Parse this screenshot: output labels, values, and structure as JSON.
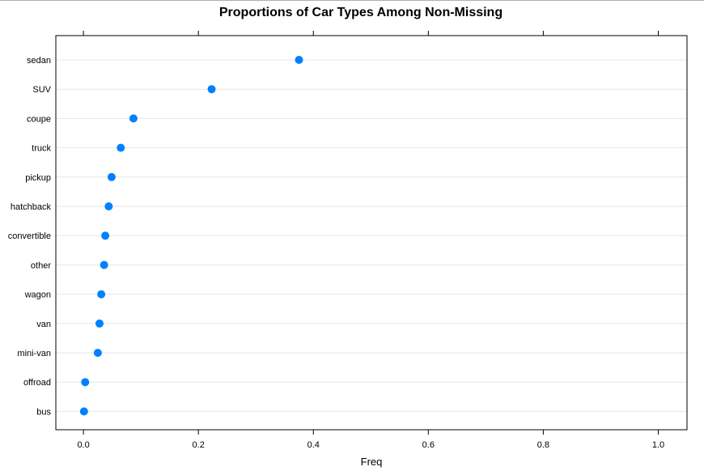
{
  "chart_data": {
    "type": "scatter",
    "title": "Proportions of Car Types Among Non-Missing",
    "xlabel": "Freq",
    "ylabel": "",
    "xlim": [
      -0.048,
      1.05
    ],
    "x_ticks": [
      0.0,
      0.2,
      0.4,
      0.6,
      0.8,
      1.0
    ],
    "x_tick_labels": [
      "0.0",
      "0.2",
      "0.4",
      "0.6",
      "0.8",
      "1.0"
    ],
    "grid": "horizontal",
    "legend": "none",
    "point_color": "#0080ff",
    "categories": [
      "sedan",
      "SUV",
      "coupe",
      "truck",
      "pickup",
      "hatchback",
      "convertible",
      "other",
      "wagon",
      "van",
      "mini-van",
      "offroad",
      "bus"
    ],
    "values": [
      0.375,
      0.223,
      0.087,
      0.065,
      0.049,
      0.044,
      0.038,
      0.036,
      0.031,
      0.028,
      0.025,
      0.003,
      0.001
    ]
  }
}
